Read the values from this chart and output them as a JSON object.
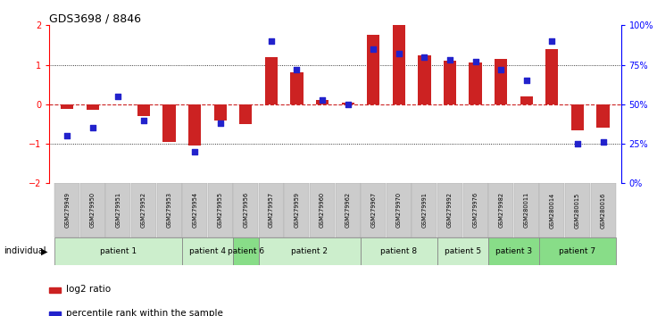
{
  "title": "GDS3698 / 8846",
  "samples": [
    "GSM279949",
    "GSM279950",
    "GSM279951",
    "GSM279952",
    "GSM279953",
    "GSM279954",
    "GSM279955",
    "GSM279956",
    "GSM279957",
    "GSM279959",
    "GSM279960",
    "GSM279962",
    "GSM279967",
    "GSM279970",
    "GSM279991",
    "GSM279992",
    "GSM279976",
    "GSM279982",
    "GSM280011",
    "GSM280014",
    "GSM280015",
    "GSM280016"
  ],
  "log2_ratio": [
    -0.12,
    -0.15,
    0.0,
    -0.3,
    -0.95,
    -1.05,
    -0.4,
    -0.5,
    1.2,
    0.8,
    0.1,
    0.05,
    1.75,
    2.0,
    1.25,
    1.1,
    1.05,
    1.15,
    0.2,
    1.4,
    -0.65,
    -0.6
  ],
  "percentile_rank": [
    30,
    35,
    55,
    40,
    null,
    20,
    38,
    null,
    90,
    72,
    53,
    50,
    85,
    82,
    80,
    78,
    77,
    72,
    65,
    90,
    25,
    26
  ],
  "patients": [
    {
      "label": "patient 1",
      "start": 0,
      "end": 5,
      "color": "#cceecc"
    },
    {
      "label": "patient 4",
      "start": 5,
      "end": 7,
      "color": "#cceecc"
    },
    {
      "label": "patient 6",
      "start": 7,
      "end": 8,
      "color": "#88dd88"
    },
    {
      "label": "patient 2",
      "start": 8,
      "end": 12,
      "color": "#cceecc"
    },
    {
      "label": "patient 8",
      "start": 12,
      "end": 15,
      "color": "#cceecc"
    },
    {
      "label": "patient 5",
      "start": 15,
      "end": 17,
      "color": "#cceecc"
    },
    {
      "label": "patient 3",
      "start": 17,
      "end": 19,
      "color": "#88dd88"
    },
    {
      "label": "patient 7",
      "start": 19,
      "end": 22,
      "color": "#88dd88"
    }
  ],
  "bar_color_red": "#cc2222",
  "dot_color_blue": "#2222cc",
  "ylim": [
    -2.0,
    2.0
  ],
  "y_ticks": [
    -2,
    -1,
    0,
    1,
    2
  ],
  "y2_ticks": [
    0,
    25,
    50,
    75,
    100
  ],
  "y2_ticklabels": [
    "0%",
    "25%",
    "50%",
    "75%",
    "100%"
  ],
  "legend_log2": "log2 ratio",
  "legend_pct": "percentile rank within the sample"
}
